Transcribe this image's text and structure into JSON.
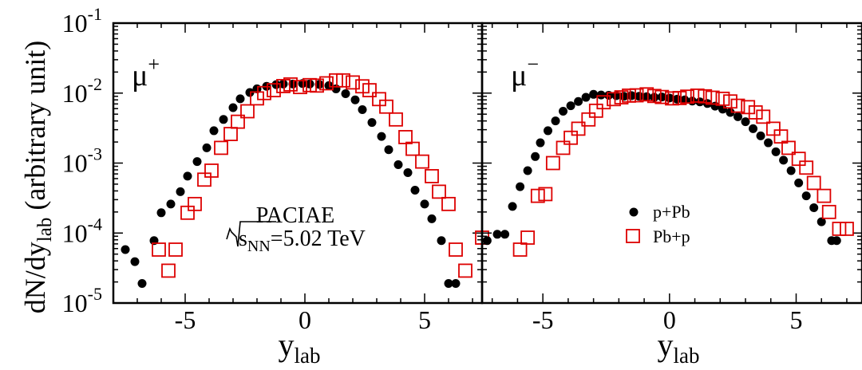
{
  "ylabel": "dN/dy",
  "ylabel_sub": "lab",
  "ylabel_suffix": " (arbitrary unit)",
  "chart_data": [
    {
      "type": "scatter",
      "panel": "left",
      "particle": "μ",
      "particle_sup": "+",
      "xlabel": "y",
      "xlabel_sub": "lab",
      "xlim": [
        -8,
        7.4
      ],
      "ylim": [
        1e-05,
        0.1
      ],
      "y_scale": "log",
      "x_ticks": [
        -5,
        0,
        5
      ],
      "x_tick_labels": [
        "-5",
        "0",
        "5"
      ],
      "y_ticks": [
        1e-05,
        0.0001,
        0.001,
        0.01,
        0.1
      ],
      "y_tick_labels": [
        {
          "base": "10",
          "exp": "-5"
        },
        {
          "base": "10",
          "exp": "-4"
        },
        {
          "base": "10",
          "exp": "-3"
        },
        {
          "base": "10",
          "exp": "-2"
        },
        {
          "base": "10",
          "exp": "-1"
        }
      ],
      "annotation": {
        "line1": "PACIAE",
        "sqrt": "s",
        "sqrt_sub": "NN",
        "value": "=5.02 TeV"
      },
      "series": [
        {
          "name": "p+Pb",
          "marker": "filled-circle",
          "color": "#000000",
          "points": [
            [
              -7.5,
              5.8e-05
            ],
            [
              -7.1,
              3.9e-05
            ],
            [
              -6.8,
              1.9e-05
            ],
            [
              -6.3,
              7.8e-05
            ],
            [
              -6.0,
              0.000195
            ],
            [
              -5.6,
              0.00026
            ],
            [
              -5.2,
              0.00039
            ],
            [
              -4.9,
              0.00065
            ],
            [
              -4.5,
              0.00105
            ],
            [
              -4.1,
              0.00165
            ],
            [
              -3.8,
              0.0029
            ],
            [
              -3.4,
              0.0042
            ],
            [
              -3.0,
              0.0062
            ],
            [
              -2.7,
              0.0083
            ],
            [
              -2.3,
              0.0102
            ],
            [
              -2.0,
              0.0115
            ],
            [
              -1.6,
              0.0125
            ],
            [
              -1.2,
              0.0132
            ],
            [
              -0.9,
              0.0135
            ],
            [
              -0.5,
              0.0135
            ],
            [
              -0.1,
              0.0137
            ],
            [
              0.2,
              0.0135
            ],
            [
              0.6,
              0.0133
            ],
            [
              1.0,
              0.0128
            ],
            [
              1.3,
              0.0115
            ],
            [
              1.7,
              0.0098
            ],
            [
              2.1,
              0.008
            ],
            [
              2.4,
              0.0058
            ],
            [
              2.8,
              0.0038
            ],
            [
              3.2,
              0.0024
            ],
            [
              3.5,
              0.00155
            ],
            [
              3.9,
              0.00095
            ],
            [
              4.3,
              0.00073
            ],
            [
              4.6,
              0.00041
            ],
            [
              5.0,
              0.00026
            ],
            [
              5.3,
              0.00016
            ],
            [
              5.7,
              7.8e-05
            ],
            [
              6.0,
              1.9e-05
            ],
            [
              6.3,
              1.9e-05
            ]
          ]
        },
        {
          "name": "Pb+p",
          "marker": "open-square",
          "color": "#dd0000",
          "points": [
            [
              -6.1,
              5.8e-05
            ],
            [
              -5.7,
              2.9e-05
            ],
            [
              -5.4,
              5.8e-05
            ],
            [
              -4.9,
              0.000195
            ],
            [
              -4.6,
              0.00026
            ],
            [
              -4.2,
              0.00058
            ],
            [
              -3.9,
              0.00078
            ],
            [
              -3.5,
              0.00165
            ],
            [
              -3.1,
              0.0026
            ],
            [
              -2.8,
              0.0039
            ],
            [
              -2.4,
              0.0055
            ],
            [
              -2.0,
              0.0084
            ],
            [
              -1.7,
              0.01
            ],
            [
              -1.3,
              0.011
            ],
            [
              -0.9,
              0.0126
            ],
            [
              -0.6,
              0.0133
            ],
            [
              -0.2,
              0.0122
            ],
            [
              0.2,
              0.013
            ],
            [
              0.5,
              0.0128
            ],
            [
              0.9,
              0.0138
            ],
            [
              1.3,
              0.0152
            ],
            [
              1.6,
              0.0152
            ],
            [
              2.0,
              0.0142
            ],
            [
              2.4,
              0.0125
            ],
            [
              2.7,
              0.011
            ],
            [
              3.1,
              0.0082
            ],
            [
              3.4,
              0.0064
            ],
            [
              3.8,
              0.0042
            ],
            [
              4.2,
              0.00235
            ],
            [
              4.5,
              0.0016
            ],
            [
              4.9,
              0.00105
            ],
            [
              5.3,
              0.00065
            ],
            [
              5.6,
              0.00039
            ],
            [
              6.0,
              0.00026
            ],
            [
              6.3,
              5.8e-05
            ],
            [
              6.7,
              2.9e-05
            ],
            [
              7.4,
              8.6e-05
            ]
          ]
        }
      ]
    },
    {
      "type": "scatter",
      "panel": "right",
      "particle": "μ",
      "particle_sup": "−",
      "xlabel": "y",
      "xlabel_sub": "lab",
      "xlim": [
        -7.4,
        7.6
      ],
      "ylim": [
        1e-05,
        0.1
      ],
      "y_scale": "log",
      "x_ticks": [
        -5,
        0,
        5
      ],
      "x_tick_labels": [
        "-5",
        "0",
        "5"
      ],
      "legend": {
        "placement": "bottom-right",
        "entries": [
          {
            "label": "p+Pb",
            "marker": "filled-circle",
            "color": "#000000"
          },
          {
            "label": "Pb+p",
            "marker": "open-square",
            "color": "#dd0000"
          }
        ]
      },
      "series": [
        {
          "name": "p+Pb",
          "marker": "filled-circle",
          "color": "#000000",
          "points": [
            [
              -7.2,
              7.8e-05
            ],
            [
              -6.8,
              9.6e-05
            ],
            [
              -6.5,
              9.6e-05
            ],
            [
              -6.2,
              0.00024
            ],
            [
              -5.9,
              0.00046
            ],
            [
              -5.6,
              0.00078
            ],
            [
              -5.3,
              0.00124
            ],
            [
              -5.1,
              0.00195
            ],
            [
              -4.8,
              0.0029
            ],
            [
              -4.5,
              0.004
            ],
            [
              -4.2,
              0.0055
            ],
            [
              -3.9,
              0.0066
            ],
            [
              -3.6,
              0.0076
            ],
            [
              -3.3,
              0.0087
            ],
            [
              -3.0,
              0.0096
            ],
            [
              -2.7,
              0.0094
            ],
            [
              -2.4,
              0.0093
            ],
            [
              -2.1,
              0.0092
            ],
            [
              -1.8,
              0.009
            ],
            [
              -1.5,
              0.0092
            ],
            [
              -1.2,
              0.009
            ],
            [
              -0.9,
              0.0089
            ],
            [
              -0.6,
              0.0087
            ],
            [
              -0.3,
              0.0088
            ],
            [
              0.0,
              0.0085
            ],
            [
              0.3,
              0.0082
            ],
            [
              0.6,
              0.008
            ],
            [
              0.9,
              0.0077
            ],
            [
              1.2,
              0.0075
            ],
            [
              1.5,
              0.0071
            ],
            [
              1.8,
              0.0065
            ],
            [
              2.1,
              0.0059
            ],
            [
              2.4,
              0.0053
            ],
            [
              2.7,
              0.0046
            ],
            [
              3.0,
              0.0039
            ],
            [
              3.3,
              0.0031
            ],
            [
              3.6,
              0.00245
            ],
            [
              3.9,
              0.00195
            ],
            [
              4.2,
              0.00145
            ],
            [
              4.5,
              0.0011
            ],
            [
              4.8,
              0.00078
            ],
            [
              5.1,
              0.00052
            ],
            [
              5.4,
              0.00034
            ],
            [
              5.7,
              0.00023
            ],
            [
              6.0,
              0.000145
            ],
            [
              6.4,
              7.8e-05
            ],
            [
              6.6,
              7.8e-05
            ]
          ]
        },
        {
          "name": "Pb+p",
          "marker": "open-square",
          "color": "#dd0000",
          "points": [
            [
              -5.9,
              5.8e-05
            ],
            [
              -5.6,
              8.6e-05
            ],
            [
              -5.2,
              0.00034
            ],
            [
              -4.9,
              0.00036
            ],
            [
              -4.6,
              0.001
            ],
            [
              -4.2,
              0.00165
            ],
            [
              -3.9,
              0.0023
            ],
            [
              -3.6,
              0.0031
            ],
            [
              -3.2,
              0.0042
            ],
            [
              -2.9,
              0.0056
            ],
            [
              -2.6,
              0.0074
            ],
            [
              -2.2,
              0.0082
            ],
            [
              -1.9,
              0.0087
            ],
            [
              -1.6,
              0.0092
            ],
            [
              -1.3,
              0.0093
            ],
            [
              -0.9,
              0.0096
            ],
            [
              -0.6,
              0.0091
            ],
            [
              -0.3,
              0.0088
            ],
            [
              0.1,
              0.0084
            ],
            [
              0.4,
              0.0085
            ],
            [
              0.7,
              0.0089
            ],
            [
              1.1,
              0.0092
            ],
            [
              1.4,
              0.009
            ],
            [
              1.7,
              0.0086
            ],
            [
              2.1,
              0.0083
            ],
            [
              2.4,
              0.0076
            ],
            [
              2.7,
              0.0066
            ],
            [
              3.1,
              0.0063
            ],
            [
              3.4,
              0.0053
            ],
            [
              3.7,
              0.0046
            ],
            [
              4.1,
              0.0031
            ],
            [
              4.4,
              0.0024
            ],
            [
              4.7,
              0.00165
            ],
            [
              5.1,
              0.00115
            ],
            [
              5.4,
              0.00086
            ],
            [
              5.7,
              0.00052
            ],
            [
              6.1,
              0.00034
            ],
            [
              6.3,
              0.0002
            ],
            [
              6.7,
              0.000115
            ],
            [
              7.0,
              0.000115
            ]
          ]
        }
      ]
    }
  ]
}
